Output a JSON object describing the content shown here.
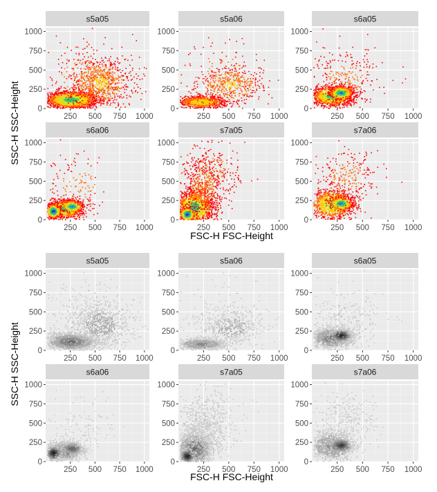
{
  "figure": "Flow cytometry density plots, coloured and greyscale versions",
  "chart_data": [
    {
      "type": "scatter",
      "variant": "color-density",
      "xlabel": "FSC-H FSC-Height",
      "ylabel": "SSC-H SSC-Height",
      "xlim": [
        0,
        1050
      ],
      "ylim": [
        0,
        1050
      ],
      "xticks": [
        250,
        500,
        750,
        1000
      ],
      "yticks": [
        0,
        250,
        500,
        750,
        1000
      ],
      "palette": [
        "#ff0000",
        "#ff6600",
        "#ffcc00",
        "#c8e632",
        "#33cc66",
        "#2b9cd8",
        "#1f3fa0"
      ],
      "panels": [
        {
          "name": "s5a05",
          "clusters": [
            {
              "cx": 260,
              "cy": 110,
              "sx": 130,
              "sy": 55,
              "n": 1800,
              "hot": 5
            },
            {
              "cx": 560,
              "cy": 330,
              "sx": 160,
              "sy": 160,
              "n": 800,
              "hot": 2
            },
            {
              "cx": 400,
              "cy": 400,
              "sx": 250,
              "sy": 250,
              "n": 220,
              "hot": 1
            }
          ]
        },
        {
          "name": "s5a06",
          "clusters": [
            {
              "cx": 230,
              "cy": 80,
              "sx": 120,
              "sy": 40,
              "n": 900,
              "hot": 3
            },
            {
              "cx": 520,
              "cy": 300,
              "sx": 160,
              "sy": 120,
              "n": 450,
              "hot": 2
            },
            {
              "cx": 400,
              "cy": 450,
              "sx": 260,
              "sy": 250,
              "n": 140,
              "hot": 1
            }
          ]
        },
        {
          "name": "s6a05",
          "clusters": [
            {
              "cx": 200,
              "cy": 160,
              "sx": 100,
              "sy": 65,
              "n": 1400,
              "hot": 5
            },
            {
              "cx": 290,
              "cy": 200,
              "sx": 60,
              "sy": 45,
              "n": 600,
              "hot": 6
            },
            {
              "cx": 330,
              "cy": 400,
              "sx": 180,
              "sy": 200,
              "n": 280,
              "hot": 1
            }
          ]
        },
        {
          "name": "s6a06",
          "clusters": [
            {
              "cx": 200,
              "cy": 140,
              "sx": 90,
              "sy": 60,
              "n": 1100,
              "hot": 5
            },
            {
              "cx": 80,
              "cy": 110,
              "sx": 40,
              "sy": 50,
              "n": 350,
              "hot": 7
            },
            {
              "cx": 270,
              "cy": 170,
              "sx": 55,
              "sy": 40,
              "n": 300,
              "hot": 6
            },
            {
              "cx": 330,
              "cy": 450,
              "sx": 180,
              "sy": 200,
              "n": 120,
              "hot": 1
            }
          ]
        },
        {
          "name": "s7a05",
          "clusters": [
            {
              "cx": 160,
              "cy": 160,
              "sx": 90,
              "sy": 110,
              "n": 1500,
              "hot": 5
            },
            {
              "cx": 90,
              "cy": 70,
              "sx": 40,
              "sy": 45,
              "n": 450,
              "hot": 7
            },
            {
              "cx": 250,
              "cy": 420,
              "sx": 120,
              "sy": 200,
              "n": 600,
              "hot": 1
            },
            {
              "cx": 350,
              "cy": 650,
              "sx": 170,
              "sy": 170,
              "n": 140,
              "hot": 1
            }
          ]
        },
        {
          "name": "s7a06",
          "clusters": [
            {
              "cx": 200,
              "cy": 200,
              "sx": 110,
              "sy": 100,
              "n": 1100,
              "hot": 4
            },
            {
              "cx": 290,
              "cy": 210,
              "sx": 60,
              "sy": 45,
              "n": 450,
              "hot": 6
            },
            {
              "cx": 350,
              "cy": 550,
              "sx": 160,
              "sy": 200,
              "n": 260,
              "hot": 1
            }
          ]
        }
      ]
    },
    {
      "type": "scatter",
      "variant": "grey-density",
      "xlabel": "FSC-H FSC-Height",
      "ylabel": "SSC-H SSC-Height",
      "xlim": [
        0,
        1050
      ],
      "ylim": [
        0,
        1050
      ],
      "xticks": [
        250,
        500,
        750,
        1000
      ],
      "yticks": [
        0,
        250,
        500,
        750,
        1000
      ],
      "palette": [
        "#c8c8c8",
        "#aaaaaa",
        "#8a8a8a",
        "#6a6a6a",
        "#4a4a4a",
        "#2e2e2e",
        "#111111"
      ],
      "panels": [
        {
          "name": "s5a05",
          "clusters": [
            {
              "cx": 260,
              "cy": 110,
              "sx": 130,
              "sy": 55,
              "n": 1800,
              "hot": 3
            },
            {
              "cx": 560,
              "cy": 330,
              "sx": 160,
              "sy": 160,
              "n": 800,
              "hot": 1
            },
            {
              "cx": 400,
              "cy": 400,
              "sx": 250,
              "sy": 250,
              "n": 220,
              "hot": 0
            }
          ]
        },
        {
          "name": "s5a06",
          "clusters": [
            {
              "cx": 230,
              "cy": 80,
              "sx": 120,
              "sy": 40,
              "n": 900,
              "hot": 2
            },
            {
              "cx": 520,
              "cy": 300,
              "sx": 160,
              "sy": 120,
              "n": 450,
              "hot": 1
            },
            {
              "cx": 400,
              "cy": 450,
              "sx": 260,
              "sy": 250,
              "n": 140,
              "hot": 0
            }
          ]
        },
        {
          "name": "s6a05",
          "clusters": [
            {
              "cx": 200,
              "cy": 160,
              "sx": 100,
              "sy": 65,
              "n": 1400,
              "hot": 3
            },
            {
              "cx": 290,
              "cy": 190,
              "sx": 55,
              "sy": 40,
              "n": 550,
              "hot": 6
            },
            {
              "cx": 330,
              "cy": 400,
              "sx": 180,
              "sy": 200,
              "n": 280,
              "hot": 0
            }
          ]
        },
        {
          "name": "s6a06",
          "clusters": [
            {
              "cx": 200,
              "cy": 140,
              "sx": 90,
              "sy": 60,
              "n": 1100,
              "hot": 3
            },
            {
              "cx": 80,
              "cy": 110,
              "sx": 40,
              "sy": 50,
              "n": 350,
              "hot": 6
            },
            {
              "cx": 270,
              "cy": 170,
              "sx": 55,
              "sy": 40,
              "n": 300,
              "hot": 4
            },
            {
              "cx": 330,
              "cy": 450,
              "sx": 180,
              "sy": 200,
              "n": 120,
              "hot": 0
            }
          ]
        },
        {
          "name": "s7a05",
          "clusters": [
            {
              "cx": 160,
              "cy": 160,
              "sx": 90,
              "sy": 110,
              "n": 1500,
              "hot": 3
            },
            {
              "cx": 90,
              "cy": 70,
              "sx": 40,
              "sy": 45,
              "n": 450,
              "hot": 6
            },
            {
              "cx": 250,
              "cy": 420,
              "sx": 120,
              "sy": 200,
              "n": 600,
              "hot": 0
            },
            {
              "cx": 350,
              "cy": 650,
              "sx": 170,
              "sy": 170,
              "n": 140,
              "hot": 0
            }
          ]
        },
        {
          "name": "s7a06",
          "clusters": [
            {
              "cx": 200,
              "cy": 200,
              "sx": 110,
              "sy": 100,
              "n": 1100,
              "hot": 2
            },
            {
              "cx": 290,
              "cy": 210,
              "sx": 60,
              "sy": 45,
              "n": 450,
              "hot": 5
            },
            {
              "cx": 350,
              "cy": 550,
              "sx": 160,
              "sy": 200,
              "n": 260,
              "hot": 0
            }
          ]
        }
      ]
    }
  ]
}
